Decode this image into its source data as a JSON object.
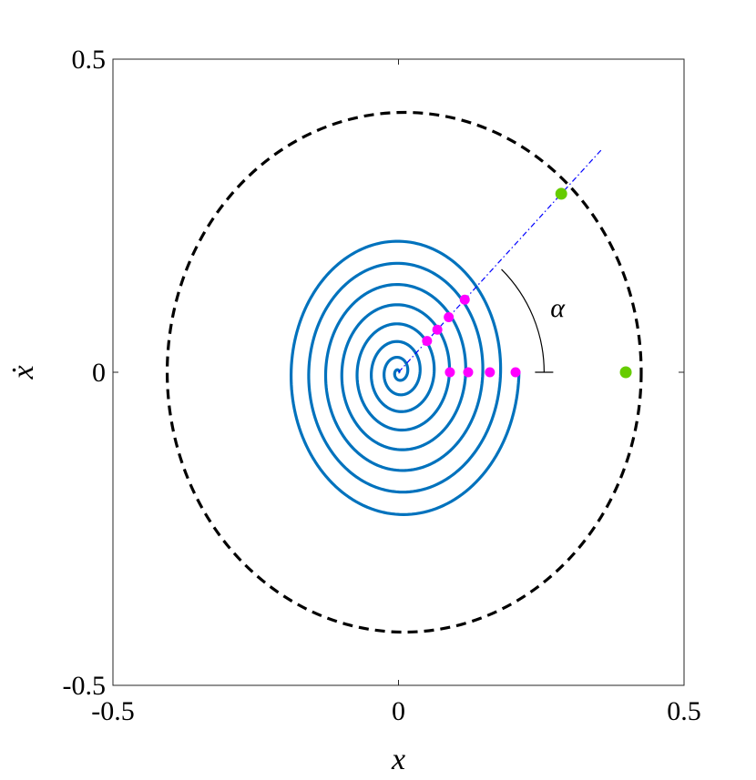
{
  "chart_data": {
    "type": "scatter",
    "xlabel": "x",
    "ylabel": "ẋ",
    "xlim": [
      -0.5,
      0.5
    ],
    "ylim": [
      -0.5,
      0.5
    ],
    "xticks": [
      {
        "value": -0.5,
        "label": "-0.5"
      },
      {
        "value": 0,
        "label": "0"
      },
      {
        "value": 0.5,
        "label": "0.5"
      }
    ],
    "yticks": [
      {
        "value": -0.5,
        "label": "-0.5"
      },
      {
        "value": 0,
        "label": "0"
      },
      {
        "value": 0.5,
        "label": "0.5"
      }
    ],
    "grid": false,
    "series": [
      {
        "kind": "dashed-closed-curve",
        "color": "#000000",
        "x_center": 0.01,
        "y_center": 0.0,
        "x_halfwidth": 0.415,
        "y_halfwidth": 0.415
      },
      {
        "kind": "spiral",
        "color": "#0072BD",
        "start": [
          0.205,
          0.0
        ],
        "end": [
          0.0,
          0.0
        ],
        "turns": 8
      },
      {
        "kind": "dash-dot-ray",
        "color": "#0000FF",
        "from": [
          0.0,
          0.0
        ],
        "to": [
          0.355,
          0.355
        ]
      },
      {
        "kind": "points",
        "color": "#FF00FF",
        "points": [
          [
            0.09,
            0.0
          ],
          [
            0.122,
            0.0
          ],
          [
            0.16,
            0.0
          ],
          [
            0.205,
            0.0
          ],
          [
            0.05,
            0.05
          ],
          [
            0.068,
            0.068
          ],
          [
            0.088,
            0.088
          ],
          [
            0.116,
            0.116
          ]
        ]
      },
      {
        "kind": "points",
        "color": "#66CC00",
        "points": [
          [
            0.285,
            0.285
          ],
          [
            0.398,
            0.0
          ]
        ]
      }
    ],
    "annotations": [
      {
        "text": "α",
        "kind": "angle-arc",
        "center": [
          0,
          0
        ],
        "radius": 0.255,
        "from_deg": 0,
        "to_deg": 45
      }
    ]
  }
}
